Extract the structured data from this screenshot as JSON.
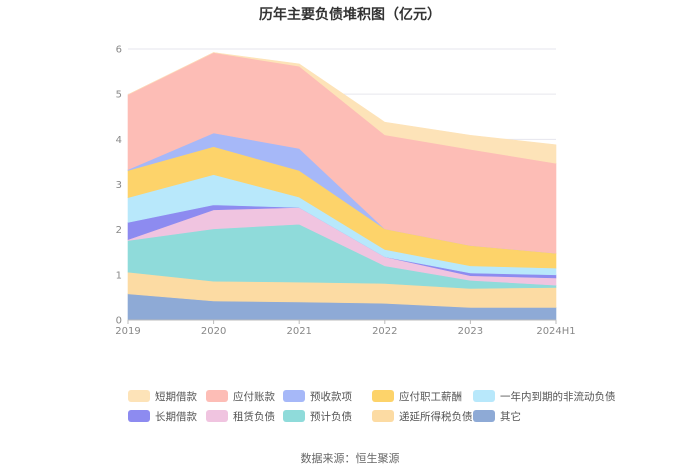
{
  "title": "历年主要负债堆积图（亿元）",
  "footer": "数据来源：恒生聚源",
  "chart_data": {
    "type": "area",
    "stacked": true,
    "title": "历年主要负债堆积图（亿元）",
    "categories": [
      "2019",
      "2020",
      "2021",
      "2022",
      "2023",
      "2024H1"
    ],
    "ylim": [
      0,
      6
    ],
    "yticks": [
      0,
      1,
      2,
      3,
      4,
      5,
      6
    ],
    "grid": true,
    "legend_position": "bottom",
    "series": [
      {
        "name": "其它",
        "color": "#8eaad6",
        "values": [
          0.58,
          0.42,
          0.4,
          0.37,
          0.28,
          0.28
        ]
      },
      {
        "name": "递延所得税负债",
        "color": "#fcdba3",
        "values": [
          0.48,
          0.44,
          0.44,
          0.44,
          0.42,
          0.44
        ]
      },
      {
        "name": "预计负债",
        "color": "#8fdbda",
        "values": [
          0.7,
          1.16,
          1.28,
          0.39,
          0.18,
          0.05
        ]
      },
      {
        "name": "租赁负债",
        "color": "#f0c4e0",
        "values": [
          0.02,
          0.42,
          0.37,
          0.2,
          0.1,
          0.16
        ]
      },
      {
        "name": "长期借款",
        "color": "#8d8bf0",
        "values": [
          0.38,
          0.11,
          0.0,
          0.0,
          0.06,
          0.07
        ]
      },
      {
        "name": "一年内到期的非流动负债",
        "color": "#b8e8fb",
        "values": [
          0.55,
          0.67,
          0.23,
          0.16,
          0.16,
          0.15
        ]
      },
      {
        "name": "应付职工薪酬",
        "color": "#fdd36a",
        "values": [
          0.6,
          0.62,
          0.59,
          0.46,
          0.45,
          0.33
        ]
      },
      {
        "name": "预收款项",
        "color": "#a6b8f8",
        "values": [
          0.02,
          0.3,
          0.49,
          0.0,
          0.0,
          0.0
        ]
      },
      {
        "name": "应付账款",
        "color": "#fdbdb6",
        "values": [
          1.66,
          1.78,
          1.82,
          2.08,
          2.13,
          1.99
        ]
      },
      {
        "name": "短期借款",
        "color": "#fde3b8",
        "values": [
          0.0,
          0.0,
          0.05,
          0.28,
          0.31,
          0.41
        ]
      }
    ],
    "legend_order": [
      "短期借款",
      "应付账款",
      "预收款项",
      "应付职工薪酬",
      "一年内到期的非流动负债",
      "长期借款",
      "租赁负债",
      "预计负债",
      "递延所得税负债",
      "其它"
    ]
  }
}
